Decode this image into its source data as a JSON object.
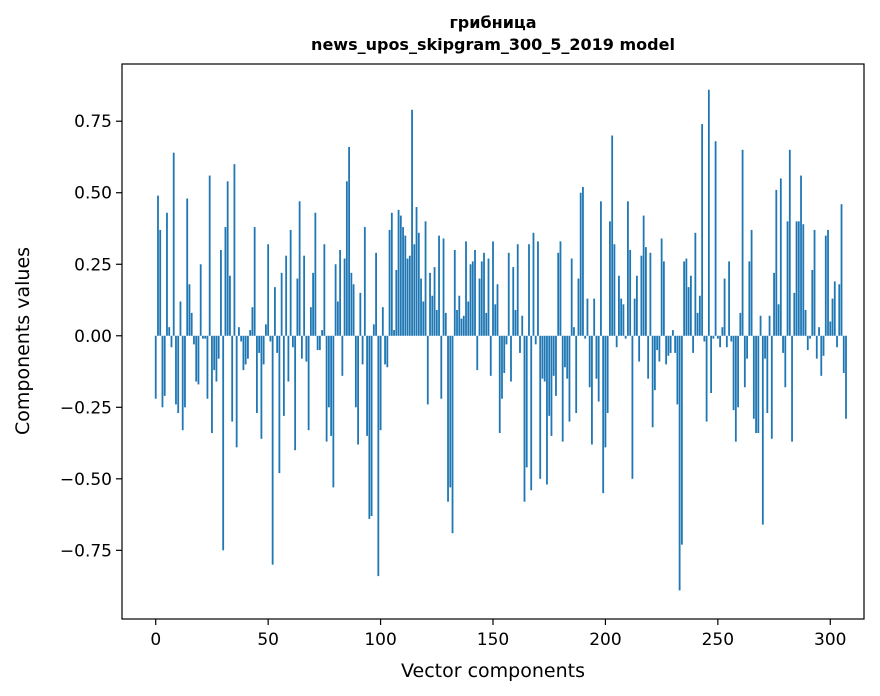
{
  "chart_data": {
    "type": "bar",
    "title": "грибница",
    "subtitle": "news_upos_skipgram_300_5_2019 model",
    "xlabel": "Vector components",
    "ylabel": "Components values",
    "xlim": [
      -15,
      315
    ],
    "ylim": [
      -0.99,
      0.95
    ],
    "xticks": [
      0,
      50,
      100,
      150,
      200,
      250,
      300
    ],
    "yticks": [
      -0.75,
      -0.5,
      -0.25,
      0.0,
      0.25,
      0.5,
      0.75
    ],
    "ytick_labels": [
      "−0.75",
      "−0.50",
      "−0.25",
      "0.00",
      "0.25",
      "0.50",
      "0.75"
    ],
    "bar_color": "#1f77b4",
    "grid": false,
    "values": [
      -0.22,
      0.49,
      0.37,
      -0.25,
      -0.21,
      0.43,
      0.03,
      -0.04,
      0.64,
      -0.24,
      -0.27,
      0.12,
      -0.33,
      -0.25,
      0.48,
      0.18,
      0.08,
      -0.03,
      -0.16,
      -0.17,
      0.25,
      -0.01,
      -0.01,
      -0.22,
      0.56,
      -0.34,
      -0.12,
      -0.16,
      -0.08,
      0.3,
      -0.75,
      0.38,
      0.54,
      0.21,
      -0.3,
      0.6,
      -0.39,
      0.03,
      -0.02,
      -0.12,
      -0.1,
      -0.08,
      0.02,
      0.1,
      0.38,
      -0.27,
      -0.06,
      -0.36,
      -0.1,
      0.04,
      0.32,
      -0.02,
      -0.8,
      0.17,
      -0.06,
      -0.48,
      0.22,
      -0.28,
      0.28,
      -0.16,
      0.37,
      -0.04,
      -0.4,
      0.2,
      0.47,
      -0.08,
      0.28,
      -0.09,
      -0.33,
      0.1,
      0.22,
      0.43,
      -0.05,
      -0.05,
      0.02,
      0.32,
      -0.37,
      -0.25,
      -0.35,
      -0.53,
      0.25,
      0.12,
      0.3,
      -0.14,
      0.27,
      0.54,
      0.66,
      0.22,
      0.18,
      -0.25,
      -0.38,
      0.15,
      -0.1,
      0.38,
      -0.35,
      -0.64,
      -0.63,
      0.04,
      0.29,
      -0.84,
      -0.33,
      0.1,
      -0.1,
      -0.11,
      0.37,
      0.43,
      0.02,
      0.23,
      0.44,
      0.42,
      0.38,
      0.35,
      0.27,
      0.28,
      0.79,
      0.32,
      0.45,
      0.36,
      0.2,
      0.12,
      0.4,
      -0.24,
      0.22,
      0.14,
      0.24,
      0.09,
      0.35,
      -0.22,
      0.34,
      0.08,
      -0.58,
      -0.53,
      -0.69,
      0.3,
      0.09,
      0.14,
      0.06,
      0.07,
      0.33,
      0.12,
      0.25,
      0.26,
      0.3,
      -0.12,
      0.2,
      0.26,
      0.29,
      0.08,
      0.27,
      -0.14,
      0.33,
      0.11,
      0.18,
      -0.34,
      -0.22,
      -0.13,
      -0.03,
      0.29,
      -0.16,
      0.24,
      0.09,
      0.32,
      -0.06,
      0.07,
      -0.58,
      -0.46,
      0.32,
      -0.54,
      0.36,
      -0.03,
      0.33,
      -0.5,
      -0.15,
      -0.16,
      -0.52,
      -0.28,
      -0.35,
      -0.14,
      -0.21,
      0.29,
      0.33,
      -0.37,
      -0.11,
      -0.15,
      -0.3,
      0.27,
      0.03,
      -0.27,
      0.2,
      0.5,
      0.52,
      -0.01,
      0.13,
      -0.18,
      -0.38,
      0.13,
      -0.15,
      -0.23,
      0.47,
      -0.55,
      -0.39,
      -0.27,
      0.4,
      0.7,
      0.32,
      -0.04,
      0.21,
      0.13,
      0.11,
      -0.01,
      0.47,
      0.3,
      -0.5,
      0.13,
      0.21,
      -0.09,
      0.28,
      0.42,
      0.31,
      -0.15,
      0.29,
      -0.32,
      -0.19,
      -0.05,
      -0.09,
      0.34,
      0.26,
      -0.1,
      -0.07,
      -0.06,
      0.02,
      -0.06,
      -0.24,
      -0.89,
      -0.73,
      0.26,
      0.27,
      0.17,
      0.21,
      -0.06,
      0.36,
      0.08,
      0.14,
      0.74,
      -0.02,
      -0.3,
      0.86,
      -0.2,
      -0.01,
      0.68,
      -0.01,
      -0.04,
      0.03,
      0.2,
      -0.04,
      0.26,
      -0.02,
      -0.26,
      -0.37,
      -0.25,
      0.08,
      0.65,
      -0.18,
      -0.08,
      0.26,
      0.37,
      -0.29,
      -0.34,
      -0.34,
      0.07,
      -0.66,
      -0.08,
      -0.27,
      0.07,
      -0.36,
      0.22,
      0.51,
      0.11,
      0.55,
      -0.06,
      -0.18,
      0.4,
      0.65,
      -0.37,
      0.15,
      0.4,
      0.4,
      0.56,
      0.39,
      0.09,
      -0.05,
      -0.01,
      0.23,
      0.37,
      -0.08,
      0.03,
      -0.14,
      -0.07,
      0.35,
      0.37,
      0.05,
      0.13,
      0.19,
      -0.04,
      0.18,
      0.46,
      -0.13,
      -0.29
    ]
  }
}
